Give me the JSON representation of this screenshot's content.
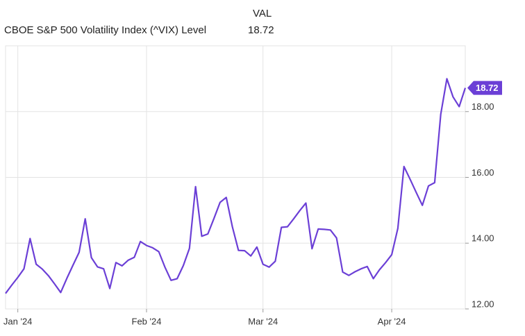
{
  "chart_data": {
    "type": "line",
    "title": "CBOE S&P 500 Volatility Index (^VIX) Level",
    "value_header": "VAL",
    "categories": [
      null,
      null,
      "Jan '24",
      null,
      null,
      null,
      null,
      null,
      null,
      null,
      null,
      null,
      null,
      null,
      null,
      null,
      null,
      null,
      null,
      null,
      null,
      null,
      null,
      "Feb '24",
      null,
      null,
      null,
      null,
      null,
      null,
      null,
      null,
      null,
      null,
      null,
      null,
      null,
      null,
      null,
      null,
      null,
      null,
      "Mar '24",
      null,
      null,
      null,
      null,
      null,
      null,
      null,
      null,
      null,
      null,
      null,
      null,
      null,
      null,
      null,
      null,
      null,
      null,
      null,
      null,
      "Apr '24",
      null,
      null,
      null,
      null,
      null,
      null,
      null,
      null,
      null,
      null,
      null,
      null
    ],
    "series": [
      {
        "name": "CBOE S&P 500 Volatility Index (^VIX) Level",
        "color": "#6b3fd6",
        "values": [
          12.47,
          12.72,
          12.96,
          13.22,
          14.14,
          13.36,
          13.21,
          13.01,
          12.76,
          12.5,
          12.93,
          13.33,
          13.72,
          14.74,
          13.56,
          13.28,
          13.22,
          12.62,
          13.41,
          13.31,
          13.48,
          13.57,
          14.05,
          13.93,
          13.86,
          13.74,
          13.27,
          12.87,
          12.92,
          13.32,
          13.84,
          15.72,
          14.21,
          14.28,
          14.75,
          15.24,
          15.39,
          14.5,
          13.78,
          13.77,
          13.61,
          13.88,
          13.36,
          13.27,
          13.45,
          14.48,
          14.5,
          14.74,
          14.99,
          15.22,
          13.83,
          14.43,
          14.42,
          14.4,
          14.16,
          13.12,
          13.02,
          13.13,
          13.22,
          13.29,
          12.92,
          13.19,
          13.41,
          13.65,
          14.45,
          16.33,
          15.94,
          15.54,
          15.15,
          15.74,
          15.84,
          17.92,
          19.0,
          18.45,
          18.15,
          18.72
        ]
      }
    ],
    "ylim": [
      12,
      20
    ],
    "yticks": [
      {
        "value": 12,
        "label": "12.00"
      },
      {
        "value": 14,
        "label": "14.00"
      },
      {
        "value": 16,
        "label": "16.00"
      },
      {
        "value": 18,
        "label": "18.00"
      }
    ],
    "grid": true
  }
}
